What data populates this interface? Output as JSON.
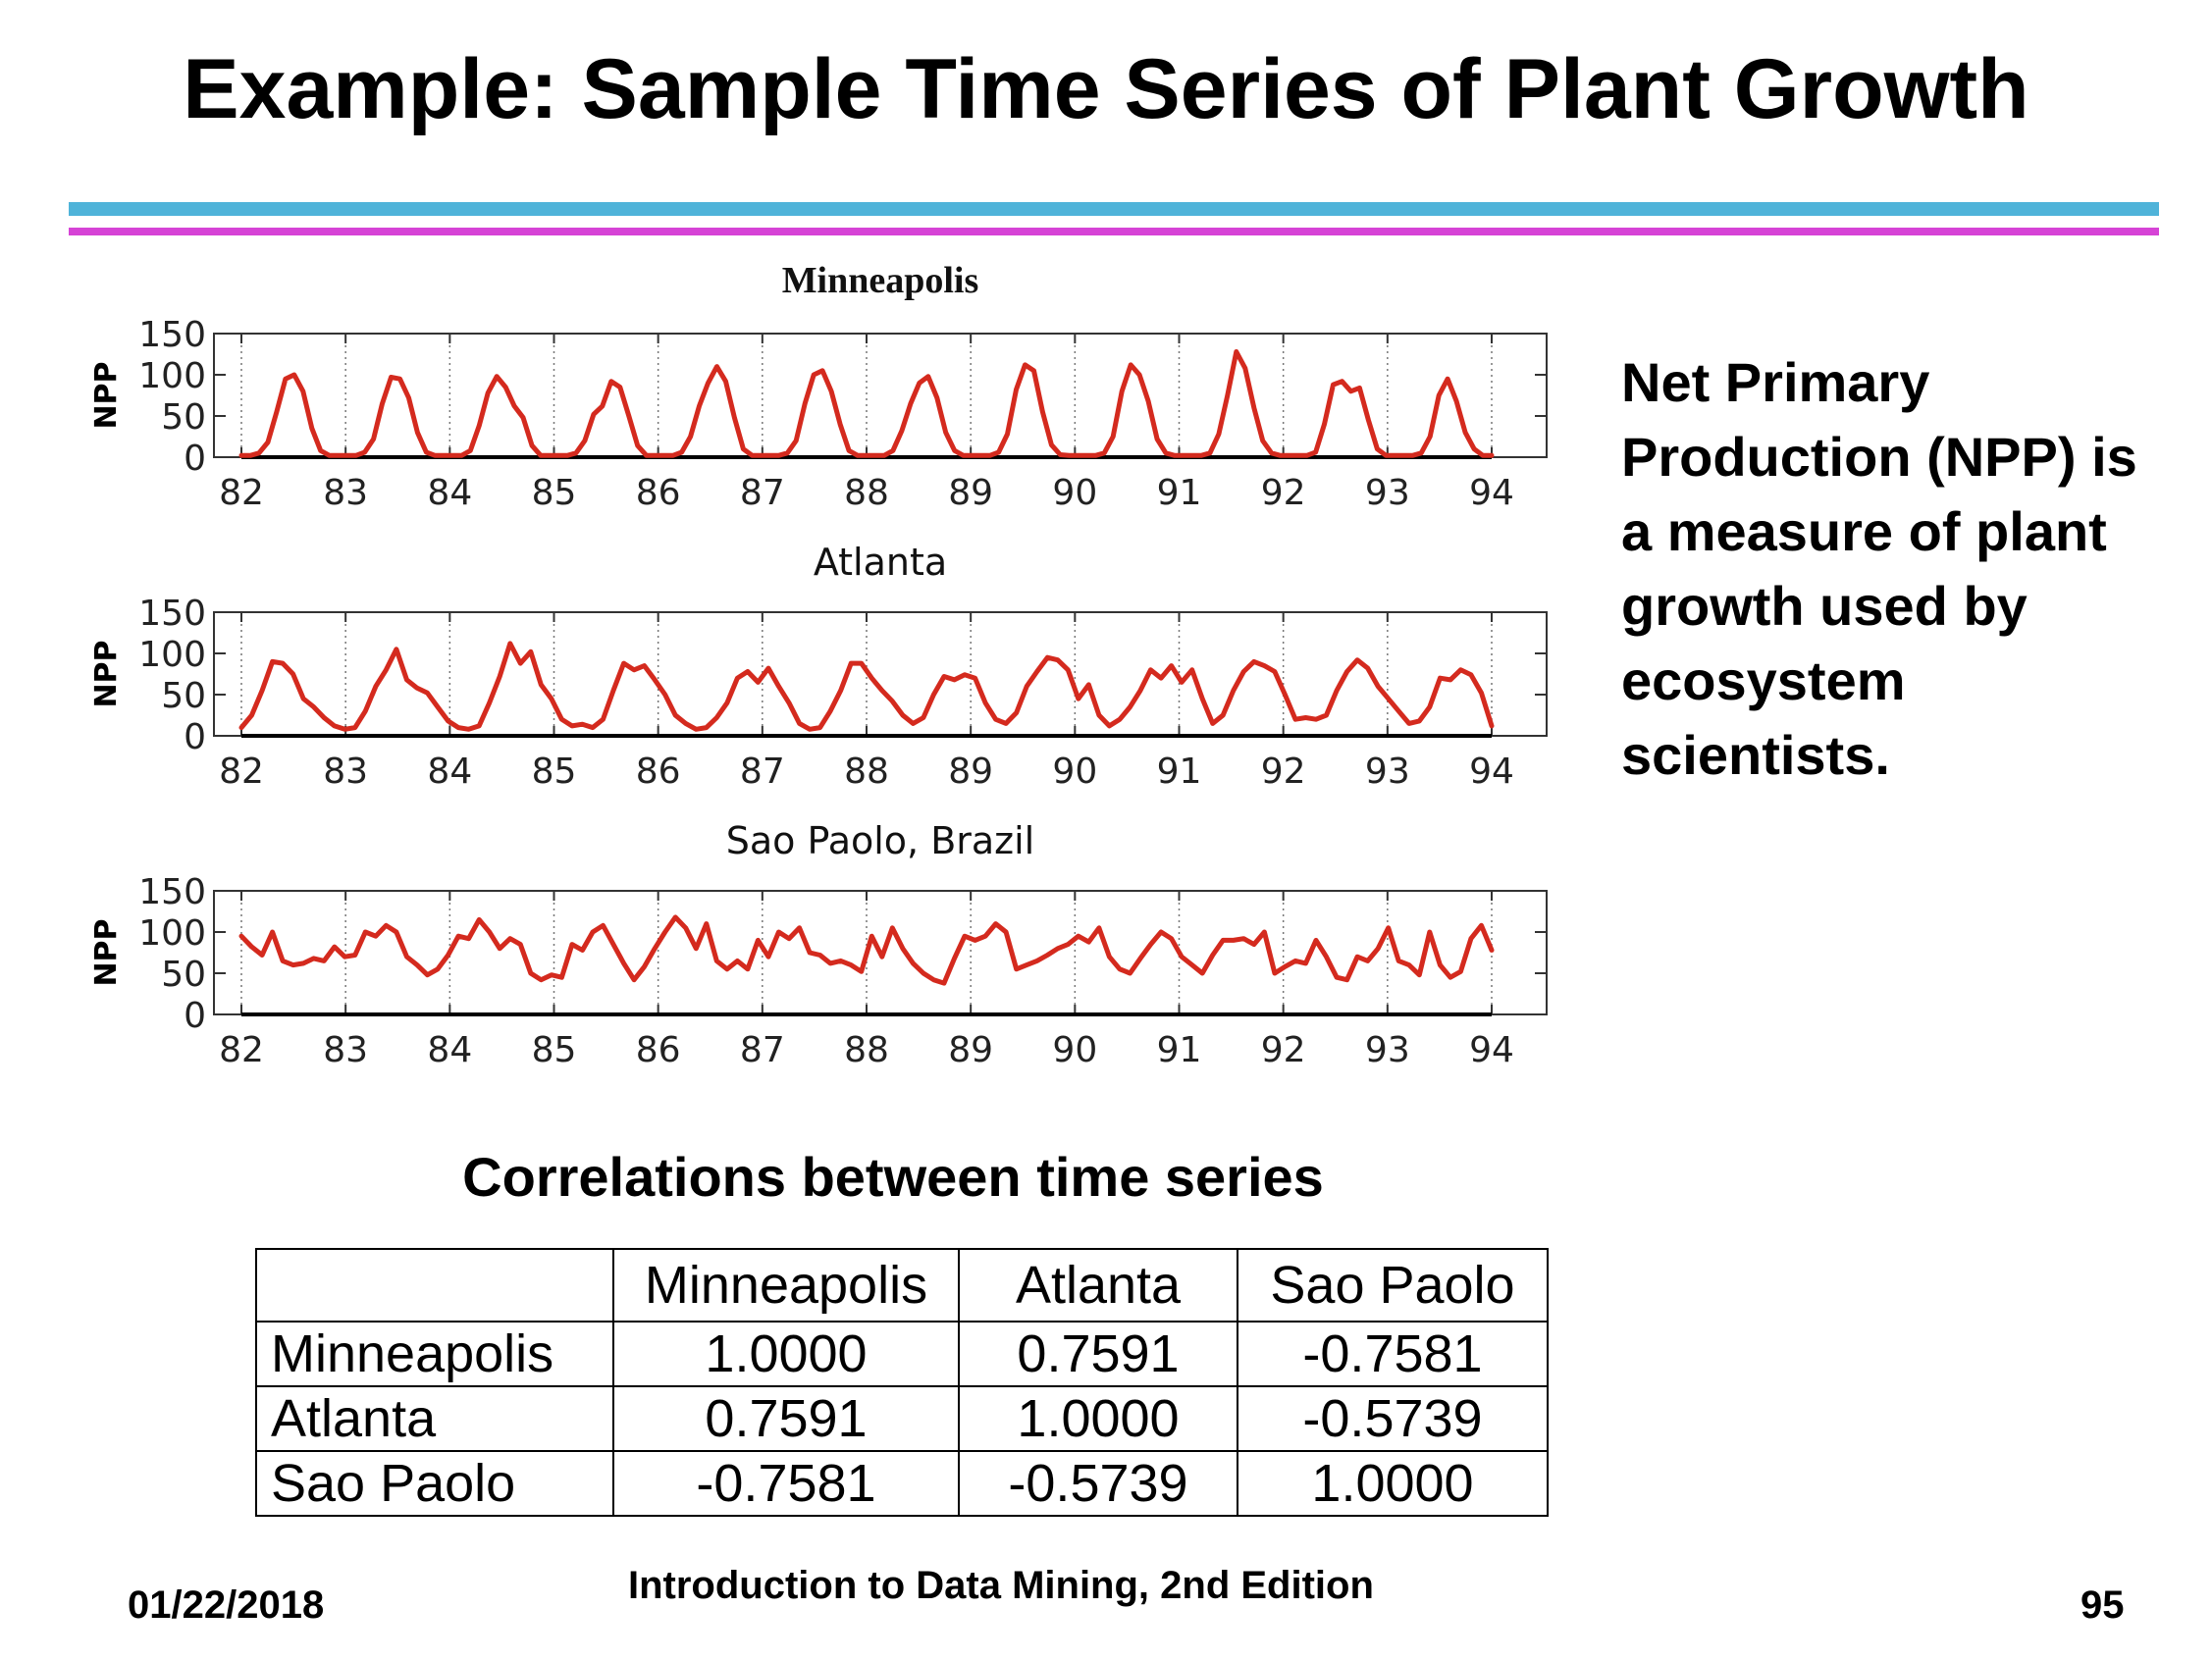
{
  "slide": {
    "title": "Example: Sample Time Series of Plant Growth",
    "description": "Net Primary Production (NPP) is a measure of plant growth used by ecosystem scientists.",
    "footer_date": "01/22/2018",
    "footer_book": "Introduction to Data Mining, 2nd Edition",
    "page_number": "95"
  },
  "colors": {
    "series": "#d42a1e",
    "rule_top": "#4fb3d9",
    "rule_bottom": "#d643d6"
  },
  "chart_data": [
    {
      "type": "line",
      "title": "Minneapolis",
      "ylabel": "NPP",
      "xlabel": "",
      "x_start": 82,
      "x_end": 94,
      "ylim": [
        0,
        150
      ],
      "yticks": [
        0,
        50,
        100,
        150
      ],
      "xticks": [
        "82",
        "83",
        "84",
        "85",
        "86",
        "87",
        "88",
        "89",
        "90",
        "91",
        "92",
        "93",
        "94"
      ],
      "grid": "vertical dotted",
      "series": [
        {
          "values": [
            2,
            2,
            5,
            18,
            55,
            95,
            100,
            80,
            35,
            8,
            2,
            2,
            2,
            2,
            6,
            22,
            65,
            97,
            95,
            72,
            30,
            6,
            2,
            2,
            2,
            2,
            8,
            38,
            78,
            98,
            85,
            62,
            48,
            14,
            2,
            2,
            2,
            2,
            5,
            20,
            52,
            62,
            92,
            85,
            50,
            14,
            2,
            2,
            2,
            2,
            6,
            25,
            62,
            90,
            110,
            92,
            48,
            10,
            2,
            2,
            2,
            2,
            5,
            20,
            65,
            100,
            105,
            80,
            40,
            8,
            2,
            2,
            2,
            2,
            8,
            32,
            65,
            90,
            98,
            72,
            30,
            8,
            2,
            2,
            2,
            2,
            6,
            28,
            82,
            112,
            105,
            55,
            15,
            3,
            2,
            2,
            2,
            2,
            5,
            25,
            80,
            112,
            100,
            68,
            22,
            5,
            2,
            2,
            2,
            2,
            5,
            28,
            75,
            128,
            108,
            60,
            20,
            5,
            2,
            2,
            2,
            2,
            6,
            40,
            88,
            92,
            80,
            84,
            45,
            10,
            2,
            2,
            2,
            2,
            5,
            25,
            75,
            95,
            68,
            30,
            10,
            2,
            2
          ]
        }
      ]
    },
    {
      "type": "line",
      "title": "Atlanta",
      "ylabel": "NPP",
      "xlabel": "",
      "x_start": 82,
      "x_end": 94,
      "ylim": [
        0,
        150
      ],
      "yticks": [
        0,
        50,
        100,
        150
      ],
      "xticks": [
        "82",
        "83",
        "84",
        "85",
        "86",
        "87",
        "88",
        "89",
        "90",
        "91",
        "92",
        "93",
        "94"
      ],
      "grid": "vertical dotted",
      "series": [
        {
          "values": [
            10,
            25,
            55,
            90,
            88,
            75,
            45,
            35,
            22,
            12,
            8,
            10,
            30,
            60,
            80,
            105,
            68,
            58,
            52,
            35,
            18,
            10,
            8,
            12,
            40,
            72,
            112,
            88,
            102,
            62,
            45,
            20,
            12,
            14,
            10,
            20,
            55,
            88,
            80,
            85,
            68,
            50,
            25,
            15,
            8,
            10,
            22,
            40,
            70,
            78,
            65,
            82,
            60,
            40,
            15,
            8,
            10,
            30,
            55,
            88,
            88,
            70,
            55,
            42,
            25,
            15,
            22,
            50,
            72,
            68,
            74,
            70,
            40,
            20,
            15,
            28,
            60,
            78,
            95,
            92,
            80,
            45,
            62,
            25,
            12,
            20,
            35,
            55,
            80,
            70,
            85,
            65,
            80,
            45,
            15,
            25,
            55,
            78,
            90,
            85,
            78,
            50,
            20,
            22,
            20,
            25,
            55,
            78,
            92,
            82,
            60,
            45,
            30,
            15,
            18,
            35,
            70,
            68,
            80,
            74,
            52,
            12
          ]
        }
      ]
    },
    {
      "type": "line",
      "title": "Sao Paolo, Brazil",
      "ylabel": "NPP",
      "xlabel": "",
      "x_start": 82,
      "x_end": 94,
      "ylim": [
        0,
        150
      ],
      "yticks": [
        0,
        50,
        100,
        150
      ],
      "xticks": [
        "82",
        "83",
        "84",
        "85",
        "86",
        "87",
        "88",
        "89",
        "90",
        "91",
        "92",
        "93",
        "94"
      ],
      "grid": "vertical dotted",
      "series": [
        {
          "values": [
            95,
            82,
            72,
            100,
            65,
            60,
            62,
            68,
            65,
            82,
            70,
            72,
            100,
            95,
            108,
            100,
            70,
            60,
            48,
            55,
            72,
            95,
            92,
            115,
            100,
            80,
            92,
            85,
            50,
            42,
            48,
            45,
            85,
            78,
            100,
            108,
            85,
            62,
            42,
            58,
            80,
            100,
            118,
            105,
            80,
            110,
            65,
            55,
            65,
            55,
            90,
            70,
            100,
            92,
            105,
            75,
            72,
            62,
            65,
            60,
            52,
            95,
            70,
            105,
            80,
            62,
            50,
            42,
            38,
            68,
            95,
            90,
            95,
            110,
            100,
            55,
            60,
            65,
            72,
            80,
            85,
            95,
            88,
            105,
            70,
            55,
            50,
            68,
            85,
            100,
            92,
            70,
            60,
            50,
            72,
            90,
            90,
            92,
            85,
            100,
            50,
            58,
            65,
            62,
            90,
            70,
            45,
            42,
            70,
            65,
            80,
            105,
            65,
            60,
            48,
            100,
            60,
            45,
            52,
            92,
            108,
            78
          ]
        }
      ]
    }
  ],
  "correlations": {
    "title": "Correlations between time series",
    "columns": [
      "",
      "Minneapolis",
      "Atlanta",
      "Sao Paolo"
    ],
    "rows": [
      [
        "Minneapolis",
        "1.0000",
        "0.7591",
        "-0.7581"
      ],
      [
        "Atlanta",
        "0.7591",
        "1.0000",
        "-0.5739"
      ],
      [
        "Sao Paolo",
        "-0.7581",
        "-0.5739",
        "1.0000"
      ]
    ]
  }
}
